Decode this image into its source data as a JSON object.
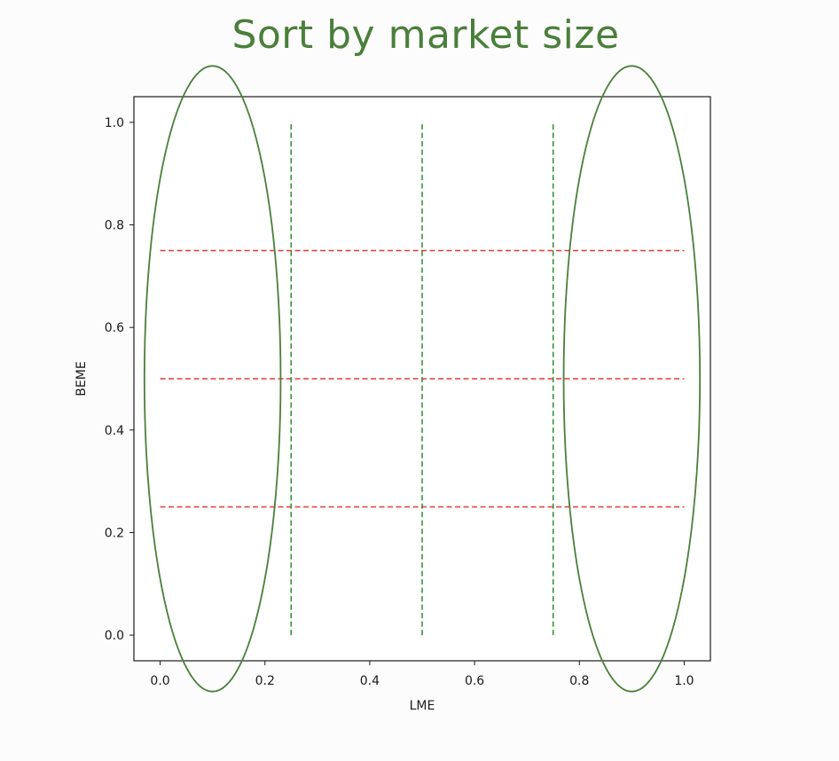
{
  "chart_data": {
    "type": "line",
    "title": "Sort by market size",
    "xlabel": "LME",
    "ylabel": "BEME",
    "xlim": [
      -0.05,
      1.05
    ],
    "ylim": [
      -0.05,
      1.05
    ],
    "xticks": [
      0.0,
      0.2,
      0.4,
      0.6,
      0.8,
      1.0
    ],
    "yticks": [
      0.0,
      0.2,
      0.4,
      0.6,
      0.8,
      1.0
    ],
    "xtick_labels": [
      "0.0",
      "0.2",
      "0.4",
      "0.6",
      "0.8",
      "1.0"
    ],
    "ytick_labels": [
      "0.0",
      "0.2",
      "0.4",
      "0.6",
      "0.8",
      "1.0"
    ],
    "grid": false,
    "vertical_lines": [
      {
        "x": 0.25,
        "y_from": 0.0,
        "y_to": 1.0,
        "color": "#2e8b2e",
        "style": "dashed"
      },
      {
        "x": 0.5,
        "y_from": 0.0,
        "y_to": 1.0,
        "color": "#2e8b2e",
        "style": "dashed"
      },
      {
        "x": 0.75,
        "y_from": 0.0,
        "y_to": 1.0,
        "color": "#2e8b2e",
        "style": "dashed"
      }
    ],
    "horizontal_lines": [
      {
        "y": 0.25,
        "x_from": 0.0,
        "x_to": 1.0,
        "color": "#e53935",
        "style": "dashed"
      },
      {
        "y": 0.5,
        "x_from": 0.0,
        "x_to": 1.0,
        "color": "#e53935",
        "style": "dashed"
      },
      {
        "y": 0.75,
        "x_from": 0.0,
        "x_to": 1.0,
        "color": "#e53935",
        "style": "dashed"
      }
    ],
    "annotations": [
      {
        "shape": "ellipse",
        "cx": 0.1,
        "cy": 0.5,
        "rx": 0.13,
        "ry": 0.61,
        "color": "#4a7f3a"
      },
      {
        "shape": "ellipse",
        "cx": 0.9,
        "cy": 0.5,
        "rx": 0.13,
        "ry": 0.61,
        "color": "#4a7f3a"
      }
    ]
  }
}
